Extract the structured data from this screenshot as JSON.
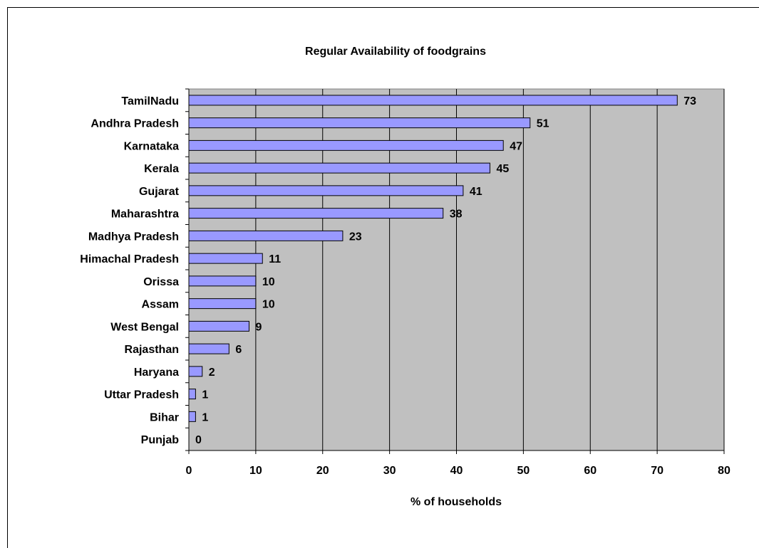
{
  "chart_data": {
    "type": "bar",
    "orientation": "horizontal",
    "title": "Regular Availability of foodgrains",
    "xlabel": "% of households",
    "ylabel": "",
    "xlim": [
      0,
      80
    ],
    "x_ticks": [
      0,
      10,
      20,
      30,
      40,
      50,
      60,
      70,
      80
    ],
    "grid": "vertical",
    "legend": "none",
    "categories": [
      "TamilNadu",
      "Andhra Pradesh",
      "Karnataka",
      "Kerala",
      "Gujarat",
      "Maharashtra",
      "Madhya Pradesh",
      "Himachal Pradesh",
      "Orissa",
      "Assam",
      "West Bengal",
      "Rajasthan",
      "Haryana",
      "Uttar Pradesh",
      "Bihar",
      "Punjab"
    ],
    "values": [
      73,
      51,
      47,
      45,
      41,
      38,
      23,
      11,
      10,
      10,
      9,
      6,
      2,
      1,
      1,
      0
    ],
    "colors": {
      "bar_fill": "#9999ff",
      "bar_stroke": "#000000",
      "plot_background": "#c0c0c0",
      "gridline": "#000000"
    }
  }
}
